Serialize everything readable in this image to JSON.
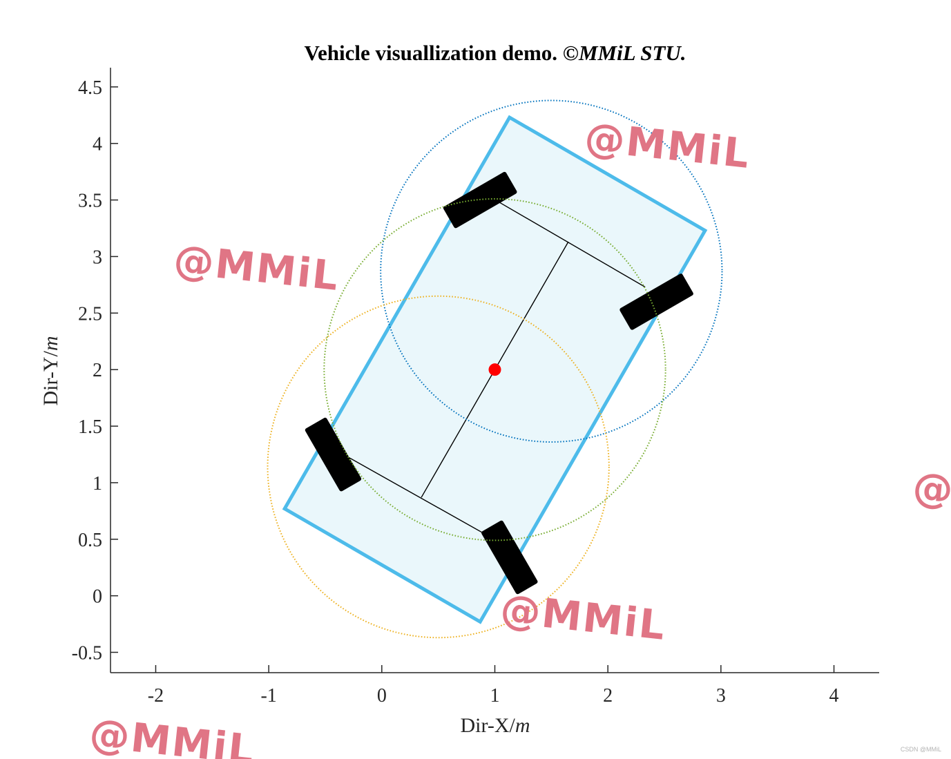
{
  "chart_data": {
    "type": "line",
    "title": "Vehicle visuallization demo. ©",
    "title_italic": "MMiL STU.",
    "xlabel": "Dir-X/",
    "xlabel_unit": "m",
    "ylabel": "Dir-Y/",
    "ylabel_unit": "m",
    "xlim": [
      -2.4,
      4.4
    ],
    "ylim": [
      -0.68,
      4.67
    ],
    "xticks": [
      -2,
      -1,
      0,
      1,
      2,
      3,
      4
    ],
    "xtick_labels": [
      "-2",
      "-1",
      "0",
      "1",
      "2",
      "3",
      "4"
    ],
    "yticks": [
      -0.5,
      0,
      0.5,
      1,
      1.5,
      2,
      2.5,
      3,
      3.5,
      4,
      4.5
    ],
    "ytick_labels": [
      "-0.5",
      "0",
      "0.5",
      "1",
      "1.5",
      "2",
      "2.5",
      "3",
      "3.5",
      "4",
      "4.5"
    ],
    "grid": false,
    "body": {
      "corners": [
        [
          1.13,
          4.23
        ],
        [
          2.86,
          3.23
        ],
        [
          0.87,
          -0.23
        ],
        [
          -0.86,
          0.77
        ]
      ],
      "fill": "#eaf7fb",
      "edge": "#4dbbea"
    },
    "center_point": {
      "x": 1.0,
      "y": 2.0,
      "color": "#ff0000"
    },
    "centerline": [
      [
        0.35,
        0.87
      ],
      [
        1.65,
        3.13
      ]
    ],
    "front_axle": [
      [
        0.97,
        3.52
      ],
      [
        2.33,
        2.73
      ]
    ],
    "rear_axle": [
      [
        -0.34,
        1.25
      ],
      [
        1.03,
        0.48
      ]
    ],
    "wheels": [
      {
        "center": [
          0.87,
          3.5
        ],
        "length": 0.64,
        "width": 0.22,
        "angle_deg": 30
      },
      {
        "center": [
          2.43,
          2.6
        ],
        "length": 0.64,
        "width": 0.22,
        "angle_deg": 30
      },
      {
        "center": [
          -0.43,
          1.25
        ],
        "length": 0.64,
        "width": 0.22,
        "angle_deg": -60
      },
      {
        "center": [
          1.13,
          0.34
        ],
        "length": 0.64,
        "width": 0.22,
        "angle_deg": -60
      }
    ],
    "circles": [
      {
        "cx": 1.5,
        "cy": 2.87,
        "r": 1.51,
        "color": "#0072bd"
      },
      {
        "cx": 1.0,
        "cy": 2.0,
        "r": 1.51,
        "color": "#77ac30"
      },
      {
        "cx": 0.5,
        "cy": 1.14,
        "r": 1.51,
        "color": "#edb120"
      }
    ]
  },
  "watermarks": [
    "@MMiL",
    "@MMiL",
    "@MMiL",
    "@MMiL",
    "@"
  ],
  "credit": "CSDN @MMiL",
  "colors": {
    "axis": "#262626",
    "wheel": "#000000"
  }
}
